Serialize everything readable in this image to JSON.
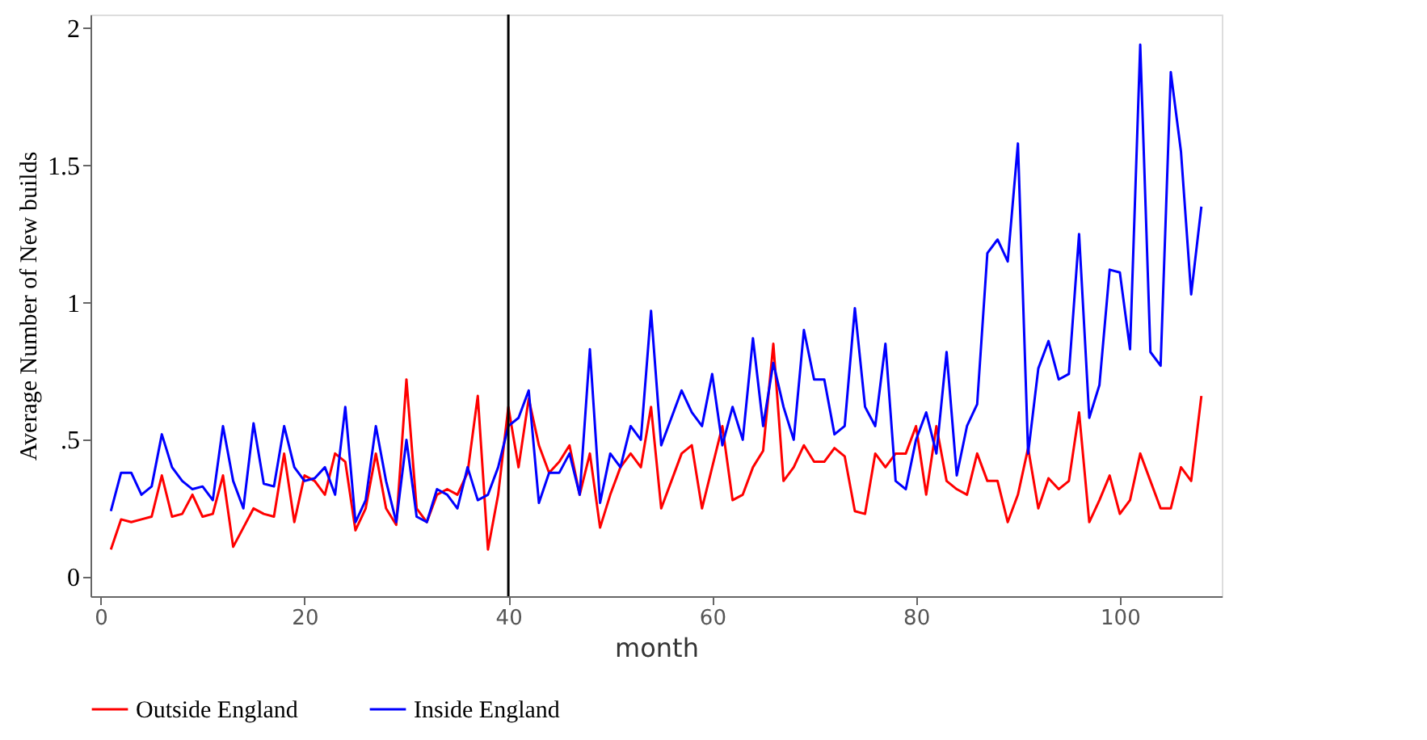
{
  "chart_data": {
    "type": "line",
    "xlabel": "month",
    "ylabel": "Average Number of New builds",
    "x": [
      1,
      2,
      3,
      4,
      5,
      6,
      7,
      8,
      9,
      10,
      11,
      12,
      13,
      14,
      15,
      16,
      17,
      18,
      19,
      20,
      21,
      22,
      23,
      24,
      25,
      26,
      27,
      28,
      29,
      30,
      31,
      32,
      33,
      34,
      35,
      36,
      37,
      38,
      39,
      40,
      41,
      42,
      43,
      44,
      45,
      46,
      47,
      48,
      49,
      50,
      51,
      52,
      53,
      54,
      55,
      56,
      57,
      58,
      59,
      60,
      61,
      62,
      63,
      64,
      65,
      66,
      67,
      68,
      69,
      70,
      71,
      72,
      73,
      74,
      75,
      76,
      77,
      78,
      79,
      80,
      81,
      82,
      83,
      84,
      85,
      86,
      87,
      88,
      89,
      90,
      91,
      92,
      93,
      94,
      95,
      96,
      97,
      98,
      99,
      100,
      101,
      102,
      103,
      104,
      105,
      106,
      107,
      108
    ],
    "series": [
      {
        "name": "Outside England",
        "color": "#ff0000",
        "values": [
          0.1,
          0.21,
          0.2,
          0.21,
          0.22,
          0.37,
          0.22,
          0.23,
          0.3,
          0.22,
          0.23,
          0.37,
          0.11,
          0.18,
          0.25,
          0.23,
          0.22,
          0.45,
          0.2,
          0.37,
          0.35,
          0.3,
          0.45,
          0.42,
          0.17,
          0.25,
          0.45,
          0.25,
          0.19,
          0.72,
          0.25,
          0.2,
          0.3,
          0.32,
          0.3,
          0.38,
          0.66,
          0.1,
          0.3,
          0.62,
          0.4,
          0.65,
          0.48,
          0.38,
          0.42,
          0.48,
          0.3,
          0.45,
          0.18,
          0.3,
          0.4,
          0.45,
          0.4,
          0.62,
          0.25,
          0.35,
          0.45,
          0.48,
          0.25,
          0.4,
          0.55,
          0.28,
          0.3,
          0.4,
          0.46,
          0.85,
          0.35,
          0.4,
          0.48,
          0.42,
          0.42,
          0.47,
          0.44,
          0.24,
          0.23,
          0.45,
          0.4,
          0.45,
          0.45,
          0.55,
          0.3,
          0.55,
          0.35,
          0.32,
          0.3,
          0.45,
          0.35,
          0.35,
          0.2,
          0.3,
          0.47,
          0.25,
          0.36,
          0.32,
          0.35,
          0.6,
          0.2,
          0.28,
          0.37,
          0.23,
          0.28,
          0.45,
          0.35,
          0.25,
          0.25,
          0.4,
          0.35,
          0.66
        ]
      },
      {
        "name": "Inside England",
        "color": "#0000ff",
        "values": [
          0.24,
          0.38,
          0.38,
          0.3,
          0.33,
          0.52,
          0.4,
          0.35,
          0.32,
          0.33,
          0.28,
          0.55,
          0.35,
          0.25,
          0.56,
          0.34,
          0.33,
          0.55,
          0.4,
          0.35,
          0.36,
          0.4,
          0.3,
          0.62,
          0.2,
          0.28,
          0.55,
          0.35,
          0.2,
          0.5,
          0.22,
          0.2,
          0.32,
          0.3,
          0.25,
          0.4,
          0.28,
          0.3,
          0.4,
          0.55,
          0.58,
          0.68,
          0.27,
          0.38,
          0.38,
          0.45,
          0.3,
          0.83,
          0.27,
          0.45,
          0.4,
          0.55,
          0.5,
          0.97,
          0.48,
          0.58,
          0.68,
          0.6,
          0.55,
          0.74,
          0.48,
          0.62,
          0.5,
          0.87,
          0.55,
          0.78,
          0.62,
          0.5,
          0.9,
          0.72,
          0.72,
          0.52,
          0.55,
          0.98,
          0.62,
          0.55,
          0.85,
          0.35,
          0.32,
          0.5,
          0.6,
          0.45,
          0.82,
          0.37,
          0.55,
          0.63,
          1.18,
          1.23,
          1.15,
          1.58,
          0.45,
          0.76,
          0.86,
          0.72,
          0.74,
          1.25,
          0.58,
          0.7,
          1.12,
          1.11,
          0.83,
          1.94,
          0.82,
          0.77,
          1.84,
          1.55,
          1.03,
          1.35
        ]
      }
    ],
    "xlim": [
      -1,
      110
    ],
    "xticks": [
      0,
      20,
      40,
      60,
      80,
      100
    ],
    "ylim": [
      -0.07,
      2.05
    ],
    "yticks": [
      0,
      {
        "value": 0.5,
        "label": ".5"
      },
      1,
      1.5,
      2
    ],
    "ref_lines": [
      {
        "axis": "x",
        "value": 40,
        "color": "#000000"
      }
    ],
    "grid": false,
    "legend": "bottom",
    "line_style": "solid",
    "marker": "none"
  }
}
